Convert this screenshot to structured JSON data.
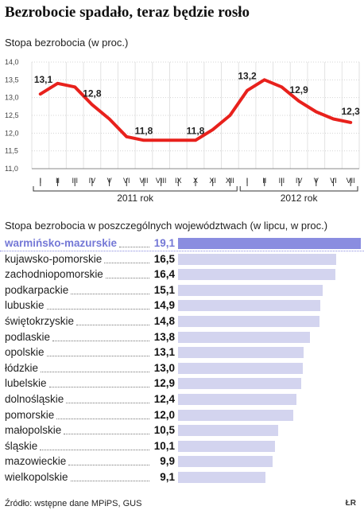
{
  "title": "Bezrobocie spadało, teraz będzie rosło",
  "chart1": {
    "subtitle": "Stopa bezrobocia (w proc.)",
    "chart_data": {
      "type": "line",
      "ylim": [
        11.0,
        14.0
      ],
      "yticks": [
        "14,0",
        "13,5",
        "13,0",
        "12,5",
        "12,0",
        "11,5",
        "11,0"
      ],
      "ytick_values": [
        14.0,
        13.5,
        13.0,
        12.5,
        12.0,
        11.5,
        11.0
      ],
      "x": [
        "I",
        "II",
        "III",
        "IV",
        "V",
        "VI",
        "VII",
        "VIII",
        "IX",
        "X",
        "XI",
        "XII",
        "I",
        "II",
        "III",
        "IV",
        "V",
        "VI",
        "VII"
      ],
      "values": [
        13.1,
        13.4,
        13.3,
        12.8,
        12.4,
        11.9,
        11.8,
        11.8,
        11.8,
        11.8,
        12.1,
        12.5,
        13.2,
        13.5,
        13.3,
        12.9,
        12.6,
        12.4,
        12.3
      ],
      "value_labels": [
        {
          "index": 0,
          "text": "13,1"
        },
        {
          "index": 3,
          "text": "12,8"
        },
        {
          "index": 6,
          "text": "11,8"
        },
        {
          "index": 9,
          "text": "11,8"
        },
        {
          "index": 12,
          "text": "13,2"
        },
        {
          "index": 15,
          "text": "12,9"
        },
        {
          "index": 18,
          "text": "12,3"
        }
      ],
      "year_groups": [
        {
          "label": "2011 rok",
          "from": 0,
          "to": 11
        },
        {
          "label": "2012 rok",
          "from": 12,
          "to": 18
        }
      ],
      "line_color": "#e8211c",
      "grid": true
    }
  },
  "chart2": {
    "title": "Stopa bezrobocia w poszczególnych województwach (w lipcu, w proc.)",
    "chart_data": {
      "type": "bar",
      "orientation": "horizontal",
      "xlim": [
        0,
        19.1
      ],
      "categories": [
        "warmińsko-mazurskie",
        "kujawsko-pomorskie",
        "zachodniopomorskie",
        "podkarpackie",
        "lubuskie",
        "świętokrzyskie",
        "podlaskie",
        "opolskie",
        "łódzkie",
        "lubelskie",
        "dolnośląskie",
        "pomorskie",
        "małopolskie",
        "śląskie",
        "mazowieckie",
        "wielkopolskie"
      ],
      "values": [
        19.1,
        16.5,
        16.4,
        15.1,
        14.9,
        14.8,
        13.8,
        13.1,
        13.0,
        12.9,
        12.4,
        12.0,
        10.5,
        10.1,
        9.9,
        9.1
      ],
      "labels": [
        "19,1",
        "16,5",
        "16,4",
        "15,1",
        "14,9",
        "14,8",
        "13,8",
        "13,1",
        "13,0",
        "12,9",
        "12,4",
        "12,0",
        "10,5",
        "10,1",
        "9,9",
        "9,1"
      ],
      "highlight_index": 0,
      "bar_color": "#d3d4ef",
      "highlight_color": "#8a8de0"
    }
  },
  "source": "Źródło: wstępne dane MPiPS, GUS",
  "logo": "ŁR"
}
